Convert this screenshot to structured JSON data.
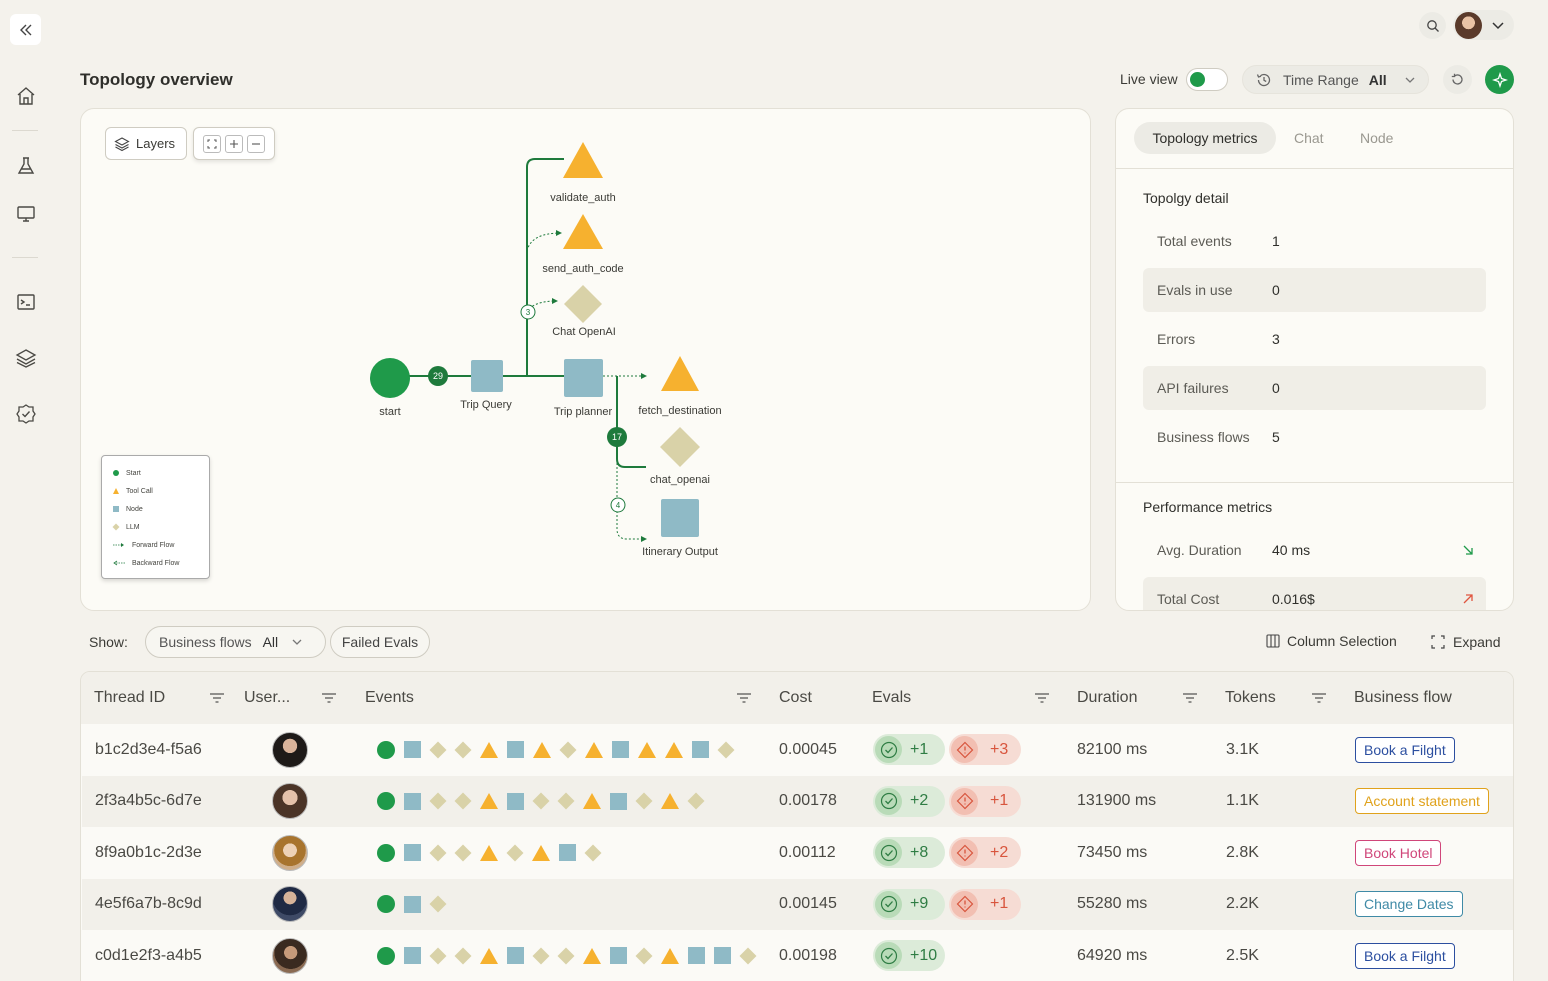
{
  "page_title": "Topology overview",
  "header": {
    "live_view_label": "Live view",
    "time_range_label": "Time Range",
    "time_range_value": "All"
  },
  "toolbar": {
    "layers_label": "Layers"
  },
  "graph": {
    "nodes": {
      "validate_auth": "validate_auth",
      "send_auth_code": "send_auth_code",
      "chat_openai_top": "Chat OpenAI",
      "start": "start",
      "trip_query": "Trip Query",
      "trip_planner": "Trip planner",
      "fetch_destination": "fetch_destination",
      "chat_openai": "chat_openai",
      "itinerary_output": "Itinerary Output"
    },
    "badges": {
      "b29": "29",
      "b3": "3",
      "b17": "17",
      "b4": "4"
    }
  },
  "legend": {
    "start": "Start",
    "tool_call": "Tool Call",
    "node": "Node",
    "llm": "LLM",
    "forward": "Forward Flow",
    "backward": "Backward Flow"
  },
  "colors": {
    "start": "#1f9a4a",
    "tool": "#f6b12f",
    "node": "#8fbac6",
    "llm": "#d9d2a8",
    "edge": "#1e7a3c"
  },
  "panel": {
    "tabs": [
      "Topology metrics",
      "Chat",
      "Node"
    ],
    "detail_title": "Topolgy detail",
    "detail": [
      {
        "label": "Total events",
        "value": "1"
      },
      {
        "label": "Evals in use",
        "value": "0"
      },
      {
        "label": "Errors",
        "value": "3"
      },
      {
        "label": "API failures",
        "value": "0"
      },
      {
        "label": "Business flows",
        "value": "5"
      }
    ],
    "perf_title": "Performance metrics",
    "perf": [
      {
        "label": "Avg. Duration",
        "value": "40 ms",
        "trend": "down-right-arrow-icon"
      },
      {
        "label": "Total Cost",
        "value": "0.016$",
        "trend": "up-right-arrow-icon"
      }
    ]
  },
  "filters": {
    "show_label": "Show:",
    "business_flows_label": "Business flows",
    "business_flows_value": "All",
    "failed_evals_label": "Failed Evals",
    "column_selection_label": "Column Selection",
    "expand_label": "Expand"
  },
  "table": {
    "headers": {
      "thread_id": "Thread ID",
      "user": "User...",
      "events": "Events",
      "cost": "Cost",
      "evals": "Evals",
      "duration": "Duration",
      "tokens": "Tokens",
      "business_flow": "Business flow"
    },
    "rows": [
      {
        "thread_id": "b1c2d3e4-f5a6",
        "events": [
          "s",
          "n",
          "l",
          "l",
          "t",
          "n",
          "t",
          "l",
          "t",
          "n",
          "t",
          "t",
          "n",
          "l"
        ],
        "cost": "0.00045",
        "eval_pos": "+1",
        "eval_neg": "+3",
        "duration": "82100 ms",
        "tokens": "3.1K",
        "flow": "Book a Filght",
        "flow_color": "#2c4fa0"
      },
      {
        "thread_id": "2f3a4b5c-6d7e",
        "events": [
          "s",
          "n",
          "l",
          "l",
          "t",
          "n",
          "l",
          "l",
          "t",
          "n",
          "l",
          "t",
          "l"
        ],
        "cost": "0.00178",
        "eval_pos": "+2",
        "eval_neg": "+1",
        "duration": "131900 ms",
        "tokens": "1.1K",
        "flow": "Account statement",
        "flow_color": "#e0a21c"
      },
      {
        "thread_id": "8f9a0b1c-2d3e",
        "events": [
          "s",
          "n",
          "l",
          "l",
          "t",
          "l",
          "t",
          "n",
          "l"
        ],
        "cost": "0.00112",
        "eval_pos": "+8",
        "eval_neg": "+2",
        "duration": "73450 ms",
        "tokens": "2.8K",
        "flow": "Book Hotel",
        "flow_color": "#d0467a"
      },
      {
        "thread_id": "4e5f6a7b-8c9d",
        "events": [
          "s",
          "n",
          "l"
        ],
        "cost": "0.00145",
        "eval_pos": "+9",
        "eval_neg": "+1",
        "duration": "55280 ms",
        "tokens": "2.2K",
        "flow": "Change Dates",
        "flow_color": "#3f8aa6"
      },
      {
        "thread_id": "c0d1e2f3-a4b5",
        "events": [
          "s",
          "n",
          "l",
          "l",
          "t",
          "n",
          "l",
          "l",
          "t",
          "n",
          "l",
          "t",
          "n",
          "n",
          "l"
        ],
        "cost": "0.00198",
        "eval_pos": "+10",
        "eval_neg": "",
        "duration": "64920 ms",
        "tokens": "2.5K",
        "flow": "Book a Filght",
        "flow_color": "#2c4fa0"
      }
    ]
  }
}
